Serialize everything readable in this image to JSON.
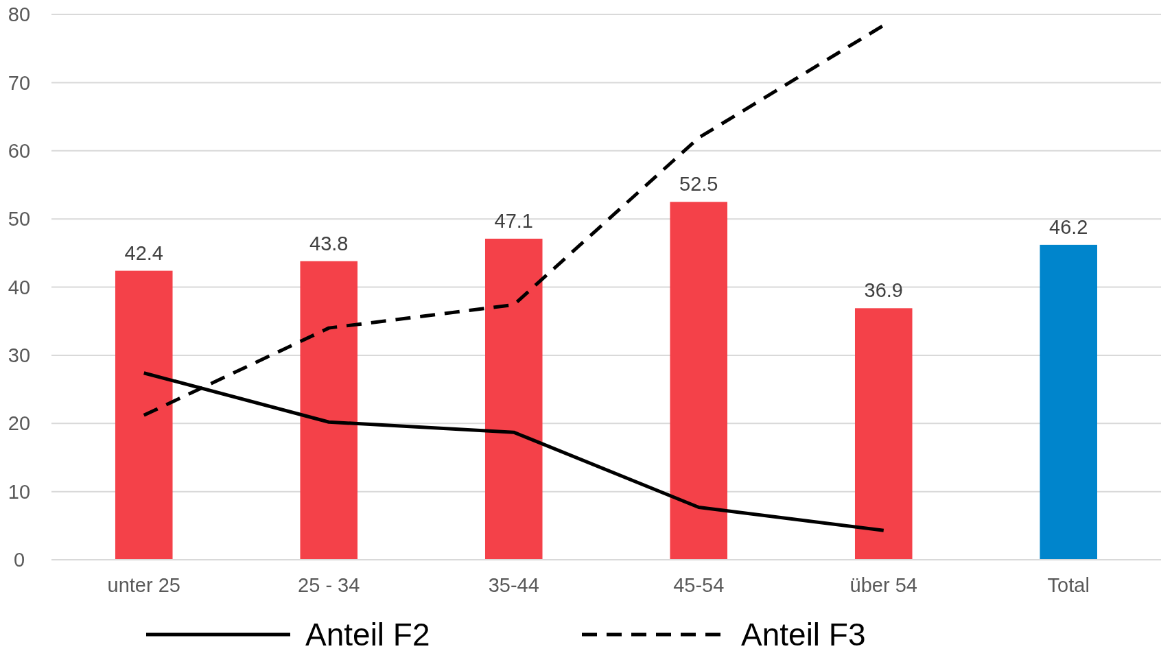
{
  "chart_data": {
    "type": "bar",
    "categories": [
      "unter 25",
      "25 - 34",
      "35-44",
      "45-54",
      "über 54",
      "Total"
    ],
    "ylim": [
      0,
      80
    ],
    "yticks": [
      0,
      10,
      20,
      30,
      40,
      50,
      60,
      70,
      80
    ],
    "grid": "y",
    "legend": "bottom",
    "series": [
      {
        "values": [
          42.4,
          43.8,
          47.1,
          52.5,
          36.9,
          46.2
        ],
        "colors": [
          "#f44149",
          "#f44149",
          "#f44149",
          "#f44149",
          "#f44149",
          "#0085cc"
        ],
        "data_labels": true
      },
      {
        "type": "line",
        "name": "Anteil F2",
        "color": "#000000",
        "line_style": "solid",
        "marker": "none",
        "values": [
          27.4,
          20.2,
          18.7,
          7.7,
          4.3,
          null
        ]
      },
      {
        "type": "line",
        "name": "Anteil F3",
        "color": "#000000",
        "line_style": "dashed",
        "marker": "none",
        "values": [
          21.2,
          34.0,
          37.4,
          61.9,
          78.4,
          null
        ]
      }
    ]
  }
}
